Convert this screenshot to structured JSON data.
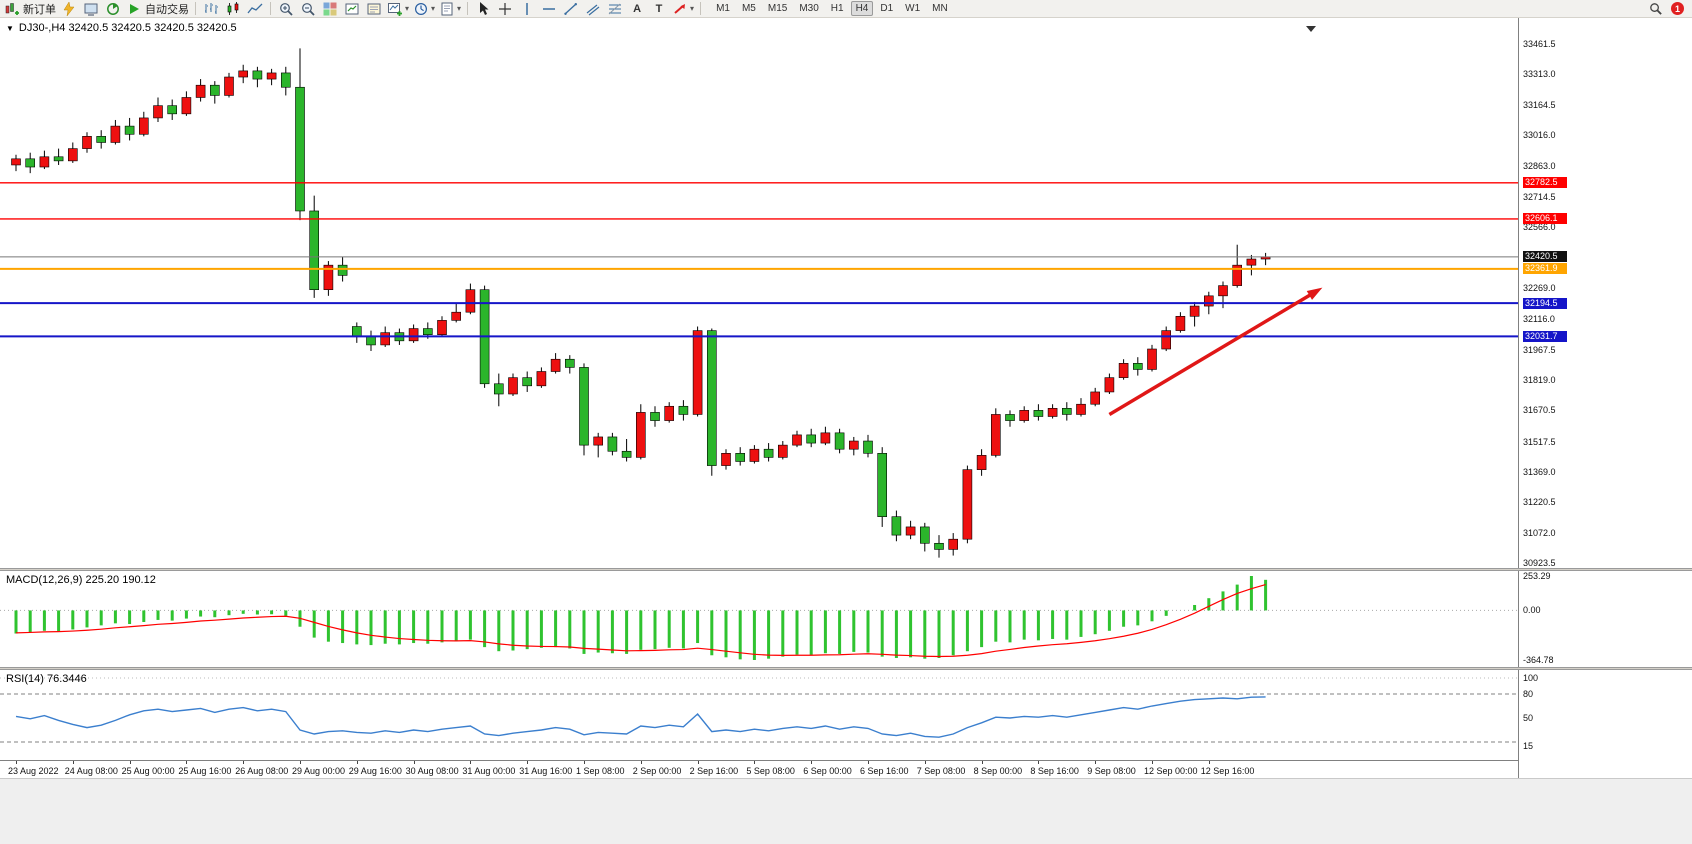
{
  "ui": {
    "caret": "▾",
    "collapse_triangle": "▼"
  },
  "toolbar": {
    "new_order_label": "新订单",
    "auto_trading_label": "自动交易",
    "timeframes": [
      "M1",
      "M5",
      "M15",
      "M30",
      "H1",
      "H4",
      "D1",
      "W1",
      "MN"
    ],
    "active_timeframe": "H4",
    "notification_count": "1",
    "icon_glyphs": {
      "text": "A",
      "label": "T"
    },
    "icon_names": [
      "new-order",
      "metaeditor",
      "terminal",
      "strategy-tester",
      "auto-trading",
      "bar-chart",
      "candlestick-chart",
      "line-chart",
      "zoom-in",
      "zoom-out",
      "tile-windows",
      "new-chart-window",
      "profiles",
      "indicators",
      "timeframes",
      "templates",
      "cursor",
      "crosshair",
      "vertical-line",
      "horizontal-line",
      "trendline",
      "equidistant-channel",
      "fibonacci",
      "text",
      "text-label",
      "arrows",
      "search",
      "notifications"
    ]
  },
  "chart": {
    "symbol": "DJ30-",
    "period": "H4",
    "title": "DJ30-,H4 32420.5 32420.5 32420.5 32420.5"
  },
  "indicators": {
    "macd": {
      "name": "MACD(12,26,9)",
      "main_value": "225.20",
      "signal_value": "190.12"
    },
    "rsi": {
      "name": "RSI(14)",
      "value": "76.3446"
    }
  },
  "chart_data": {
    "type": "candlestick",
    "symbol": "DJ30-",
    "timeframe": "H4",
    "bull_color": "#ee1010",
    "bear_color": "#2bb52b",
    "wick_color": "#000000",
    "ylim": [
      30923.5,
      33461.5
    ],
    "grid": false,
    "price_axis_labels": [
      "33461.5",
      "33313.0",
      "33164.5",
      "33016.0",
      "32863.0",
      "32714.5",
      "32566.0",
      "32269.0",
      "32116.0",
      "31967.5",
      "31819.0",
      "31670.5",
      "31517.5",
      "31369.0",
      "31220.5",
      "31072.0",
      "30923.5"
    ],
    "current_price": 32420.5,
    "hlines": [
      {
        "name": "resistance-line-1",
        "price": 32782.5,
        "color": "#ff0000",
        "width": 1.4
      },
      {
        "name": "resistance-line-2",
        "price": 32606.1,
        "color": "#ff0000",
        "width": 1.4
      },
      {
        "name": "pivot-line-orange",
        "price": 32361.9,
        "color": "#ffa500",
        "width": 2
      },
      {
        "name": "support-line-1",
        "price": 32194.5,
        "color": "#1515c8",
        "width": 2
      },
      {
        "name": "support-line-2",
        "price": 32031.7,
        "color": "#1515c8",
        "width": 2
      }
    ],
    "trend_arrow": {
      "from_bar": 77,
      "from_price": 31650,
      "to_bar": 92,
      "to_price": 32270,
      "color": "#e01717"
    },
    "time_labels": [
      "23 Aug 2022",
      "24 Aug 08:00",
      "25 Aug 00:00",
      "25 Aug 16:00",
      "26 Aug 08:00",
      "29 Aug 00:00",
      "29 Aug 16:00",
      "30 Aug 08:00",
      "31 Aug 00:00",
      "31 Aug 16:00",
      "1 Sep 08:00",
      "2 Sep 00:00",
      "2 Sep 16:00",
      "5 Sep 08:00",
      "6 Sep 00:00",
      "6 Sep 16:00",
      "7 Sep 08:00",
      "8 Sep 00:00",
      "8 Sep 16:00",
      "9 Sep 08:00",
      "12 Sep 00:00",
      "12 Sep 16:00"
    ],
    "label_every_n_bars": 4,
    "ohlc": [
      [
        32870,
        32920,
        32840,
        32900
      ],
      [
        32900,
        32930,
        32830,
        32860
      ],
      [
        32860,
        32940,
        32850,
        32910
      ],
      [
        32910,
        32950,
        32870,
        32890
      ],
      [
        32890,
        32980,
        32880,
        32950
      ],
      [
        32950,
        33030,
        32930,
        33010
      ],
      [
        33010,
        33040,
        32950,
        32980
      ],
      [
        32980,
        33090,
        32970,
        33060
      ],
      [
        33060,
        33100,
        32990,
        33020
      ],
      [
        33020,
        33130,
        33010,
        33100
      ],
      [
        33100,
        33200,
        33080,
        33160
      ],
      [
        33160,
        33190,
        33090,
        33120
      ],
      [
        33120,
        33230,
        33110,
        33200
      ],
      [
        33200,
        33290,
        33180,
        33260
      ],
      [
        33260,
        33280,
        33170,
        33210
      ],
      [
        33210,
        33320,
        33200,
        33300
      ],
      [
        33300,
        33360,
        33270,
        33330
      ],
      [
        33330,
        33350,
        33250,
        33290
      ],
      [
        33290,
        33340,
        33260,
        33320
      ],
      [
        33320,
        33350,
        33210,
        33250
      ],
      [
        33250,
        33440,
        32600,
        32645
      ],
      [
        32645,
        32720,
        32220,
        32260
      ],
      [
        32260,
        32400,
        32230,
        32380
      ],
      [
        32380,
        32420,
        32300,
        32330
      ],
      [
        32080,
        32100,
        32000,
        32030
      ],
      [
        32030,
        32060,
        31960,
        31990
      ],
      [
        31990,
        32080,
        31980,
        32050
      ],
      [
        32050,
        32070,
        31990,
        32010
      ],
      [
        32010,
        32090,
        32000,
        32070
      ],
      [
        32070,
        32100,
        32020,
        32040
      ],
      [
        32040,
        32130,
        32030,
        32110
      ],
      [
        32110,
        32190,
        32100,
        32150
      ],
      [
        32150,
        32290,
        32140,
        32260
      ],
      [
        32260,
        32280,
        31780,
        31800
      ],
      [
        31800,
        31850,
        31690,
        31750
      ],
      [
        31750,
        31850,
        31740,
        31830
      ],
      [
        31830,
        31860,
        31760,
        31790
      ],
      [
        31790,
        31880,
        31780,
        31860
      ],
      [
        31860,
        31950,
        31850,
        31920
      ],
      [
        31920,
        31940,
        31850,
        31880
      ],
      [
        31880,
        31900,
        31450,
        31500
      ],
      [
        31500,
        31560,
        31440,
        31540
      ],
      [
        31540,
        31560,
        31450,
        31470
      ],
      [
        31470,
        31530,
        31420,
        31440
      ],
      [
        31440,
        31700,
        31430,
        31660
      ],
      [
        31660,
        31690,
        31590,
        31620
      ],
      [
        31620,
        31710,
        31610,
        31690
      ],
      [
        31690,
        31720,
        31620,
        31650
      ],
      [
        31650,
        32080,
        31640,
        32060
      ],
      [
        32060,
        32070,
        31350,
        31400
      ],
      [
        31400,
        31480,
        31380,
        31460
      ],
      [
        31460,
        31490,
        31400,
        31420
      ],
      [
        31420,
        31500,
        31410,
        31480
      ],
      [
        31480,
        31510,
        31420,
        31440
      ],
      [
        31440,
        31520,
        31430,
        31500
      ],
      [
        31500,
        31570,
        31490,
        31550
      ],
      [
        31550,
        31580,
        31490,
        31510
      ],
      [
        31510,
        31590,
        31500,
        31560
      ],
      [
        31560,
        31580,
        31460,
        31480
      ],
      [
        31480,
        31540,
        31450,
        31520
      ],
      [
        31520,
        31550,
        31440,
        31460
      ],
      [
        31460,
        31490,
        31100,
        31150
      ],
      [
        31150,
        31180,
        31030,
        31060
      ],
      [
        31060,
        31130,
        31040,
        31100
      ],
      [
        31100,
        31120,
        30980,
        31020
      ],
      [
        31020,
        31060,
        30950,
        30990
      ],
      [
        30990,
        31070,
        30960,
        31040
      ],
      [
        31040,
        31400,
        31020,
        31380
      ],
      [
        31380,
        31480,
        31350,
        31450
      ],
      [
        31450,
        31680,
        31440,
        31650
      ],
      [
        31650,
        31670,
        31590,
        31620
      ],
      [
        31620,
        31690,
        31610,
        31670
      ],
      [
        31670,
        31700,
        31620,
        31640
      ],
      [
        31640,
        31700,
        31630,
        31680
      ],
      [
        31680,
        31710,
        31620,
        31650
      ],
      [
        31650,
        31730,
        31640,
        31700
      ],
      [
        31700,
        31780,
        31690,
        31760
      ],
      [
        31760,
        31850,
        31750,
        31830
      ],
      [
        31830,
        31920,
        31820,
        31900
      ],
      [
        31900,
        31930,
        31840,
        31870
      ],
      [
        31870,
        31990,
        31860,
        31970
      ],
      [
        31970,
        32080,
        31960,
        32060
      ],
      [
        32060,
        32150,
        32050,
        32130
      ],
      [
        32130,
        32200,
        32080,
        32180
      ],
      [
        32180,
        32250,
        32140,
        32230
      ],
      [
        32230,
        32300,
        32170,
        32280
      ],
      [
        32280,
        32480,
        32270,
        32380
      ],
      [
        32380,
        32430,
        32330,
        32410
      ],
      [
        32410,
        32440,
        32380,
        32420.5
      ]
    ],
    "macd": {
      "histogram_color": "#2fc32f",
      "signal_color": "#ff0000",
      "axis_labels": [
        "253.29",
        "0.00",
        "-364.78"
      ],
      "range": [
        -364.78,
        253.29
      ],
      "histogram": [
        -170,
        -160,
        -150,
        -155,
        -140,
        -125,
        -110,
        -95,
        -100,
        -85,
        -70,
        -75,
        -60,
        -45,
        -50,
        -35,
        -25,
        -30,
        -28,
        -40,
        -120,
        -200,
        -230,
        -240,
        -250,
        -255,
        -245,
        -250,
        -240,
        -245,
        -235,
        -225,
        -215,
        -270,
        -300,
        -295,
        -285,
        -275,
        -270,
        -280,
        -320,
        -310,
        -315,
        -320,
        -290,
        -285,
        -275,
        -280,
        -240,
        -330,
        -345,
        -360,
        -364.78,
        -355,
        -340,
        -325,
        -330,
        -315,
        -320,
        -305,
        -310,
        -340,
        -350,
        -345,
        -355,
        -350,
        -330,
        -300,
        -270,
        -230,
        -235,
        -215,
        -220,
        -210,
        -215,
        -195,
        -175,
        -150,
        -120,
        -110,
        -80,
        -40,
        0,
        40,
        90,
        140,
        190,
        253.29,
        225.2
      ],
      "signal": [
        -165,
        -162,
        -158,
        -156,
        -152,
        -146,
        -138,
        -128,
        -120,
        -112,
        -102,
        -96,
        -88,
        -78,
        -72,
        -64,
        -56,
        -50,
        -45,
        -43,
        -58,
        -88,
        -118,
        -143,
        -165,
        -183,
        -196,
        -207,
        -214,
        -220,
        -223,
        -224,
        -222,
        -232,
        -246,
        -256,
        -262,
        -265,
        -266,
        -269,
        -279,
        -285,
        -291,
        -297,
        -296,
        -294,
        -290,
        -288,
        -278,
        -288,
        -300,
        -312,
        -323,
        -329,
        -331,
        -330,
        -330,
        -327,
        -326,
        -322,
        -319,
        -323,
        -329,
        -332,
        -337,
        -339,
        -337,
        -330,
        -318,
        -300,
        -287,
        -273,
        -262,
        -252,
        -245,
        -235,
        -223,
        -208,
        -190,
        -168,
        -140,
        -105,
        -65,
        -20,
        30,
        80,
        125,
        160,
        190.12
      ]
    },
    "rsi": {
      "line_color": "#3b7fce",
      "axis_labels": [
        "100",
        "80",
        "50",
        "15"
      ],
      "levels": [
        80,
        20
      ],
      "values": [
        52,
        49,
        53,
        47,
        42,
        38,
        41,
        47,
        54,
        59,
        61,
        58,
        60,
        62,
        57,
        61,
        63,
        59,
        61,
        58,
        35,
        30,
        33,
        34,
        32,
        31,
        34,
        32,
        35,
        33,
        36,
        38,
        40,
        30,
        28,
        31,
        33,
        35,
        38,
        36,
        29,
        32,
        31,
        30,
        40,
        38,
        41,
        39,
        55,
        33,
        35,
        33,
        36,
        34,
        37,
        39,
        37,
        40,
        36,
        39,
        37,
        30,
        28,
        31,
        27,
        26,
        30,
        38,
        44,
        51,
        50,
        52,
        51,
        53,
        51,
        54,
        57,
        60,
        63,
        61,
        65,
        68,
        71,
        73,
        74,
        75,
        74,
        76,
        76.34
      ]
    }
  }
}
